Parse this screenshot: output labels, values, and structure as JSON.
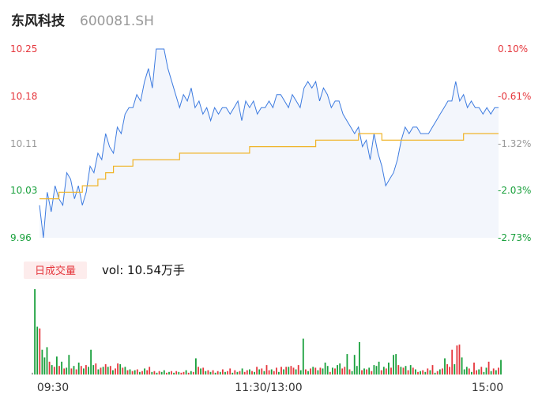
{
  "header": {
    "name": "东风科技",
    "code": "600081.SH"
  },
  "volume_panel": {
    "badge": "日成交量",
    "vol_text": "vol: 10.54万手"
  },
  "colors": {
    "price_line": "#3d7be0",
    "avg_line": "#f0b429",
    "up": "#e5363c",
    "down": "#19a03c",
    "neutral": "#999999",
    "badge_bg": "#fdecec"
  },
  "chart_data": [
    {
      "type": "line",
      "y_ticks_left": [
        "10.25",
        "10.18",
        "10.11",
        "10.03",
        "9.96"
      ],
      "y_ticks_right": [
        "0.10%",
        "-0.61%",
        "-1.32%",
        "-2.03%",
        "-2.73%"
      ],
      "ylim": [
        9.96,
        10.25
      ],
      "x_ticks": [
        "09:30",
        "11:30/13:00",
        "15:00"
      ],
      "series": [
        {
          "role": "price",
          "values": [
            10.01,
            9.96,
            10.03,
            10.0,
            10.04,
            10.02,
            10.01,
            10.06,
            10.05,
            10.02,
            10.04,
            10.01,
            10.03,
            10.07,
            10.06,
            10.09,
            10.08,
            10.12,
            10.1,
            10.09,
            10.13,
            10.12,
            10.15,
            10.16,
            10.16,
            10.18,
            10.17,
            10.2,
            10.22,
            10.19,
            10.25,
            10.25,
            10.25,
            10.22,
            10.2,
            10.18,
            10.16,
            10.18,
            10.17,
            10.19,
            10.16,
            10.17,
            10.15,
            10.16,
            10.14,
            10.16,
            10.15,
            10.16,
            10.16,
            10.15,
            10.16,
            10.17,
            10.14,
            10.17,
            10.16,
            10.17,
            10.15,
            10.16,
            10.16,
            10.17,
            10.16,
            10.18,
            10.18,
            10.17,
            10.16,
            10.18,
            10.17,
            10.16,
            10.19,
            10.2,
            10.19,
            10.2,
            10.17,
            10.19,
            10.18,
            10.16,
            10.17,
            10.17,
            10.15,
            10.14,
            10.13,
            10.12,
            10.13,
            10.1,
            10.11,
            10.08,
            10.12,
            10.09,
            10.07,
            10.04,
            10.05,
            10.06,
            10.08,
            10.11,
            10.13,
            10.12,
            10.13,
            10.13,
            10.12,
            10.12,
            10.12,
            10.13,
            10.14,
            10.15,
            10.16,
            10.17,
            10.17,
            10.2,
            10.17,
            10.18,
            10.16,
            10.17,
            10.16,
            10.16,
            10.15,
            10.16,
            10.15,
            10.16,
            10.16
          ],
          "avg_values": [
            10.02,
            10.02,
            10.02,
            10.02,
            10.02,
            10.03,
            10.03,
            10.03,
            10.03,
            10.03,
            10.03,
            10.04,
            10.04,
            10.04,
            10.04,
            10.05,
            10.05,
            10.06,
            10.06,
            10.07,
            10.07,
            10.07,
            10.07,
            10.07,
            10.08,
            10.08,
            10.08,
            10.08,
            10.08,
            10.08,
            10.08,
            10.08,
            10.08,
            10.08,
            10.08,
            10.08,
            10.09,
            10.09,
            10.09,
            10.09,
            10.09,
            10.09,
            10.09,
            10.09,
            10.09,
            10.09,
            10.09,
            10.09,
            10.09,
            10.09,
            10.09,
            10.09,
            10.09,
            10.09,
            10.1,
            10.1,
            10.1,
            10.1,
            10.1,
            10.1,
            10.1,
            10.1,
            10.1,
            10.1,
            10.1,
            10.1,
            10.1,
            10.1,
            10.1,
            10.1,
            10.1,
            10.11,
            10.11,
            10.11,
            10.11,
            10.11,
            10.11,
            10.11,
            10.11,
            10.11,
            10.11,
            10.11,
            10.12,
            10.12,
            10.12,
            10.12,
            10.12,
            10.12,
            10.11,
            10.11,
            10.11,
            10.11,
            10.11,
            10.11,
            10.11,
            10.11,
            10.11,
            10.11,
            10.11,
            10.11,
            10.11,
            10.11,
            10.11,
            10.11,
            10.11,
            10.11,
            10.11,
            10.11,
            10.11,
            10.12,
            10.12,
            10.12,
            10.12,
            10.12,
            10.12,
            10.12,
            10.12,
            10.12,
            10.12
          ]
        }
      ]
    },
    {
      "type": "bar",
      "volumes": [
        2,
        100,
        56,
        54,
        29,
        20,
        32,
        15,
        11,
        9,
        21,
        10,
        15,
        7,
        8,
        23,
        7,
        10,
        6,
        14,
        10,
        7,
        11,
        9,
        29,
        11,
        13,
        6,
        8,
        9,
        12,
        9,
        10,
        5,
        7,
        13,
        12,
        8,
        9,
        5,
        6,
        4,
        5,
        6,
        3,
        4,
        7,
        5,
        9,
        3,
        4,
        2,
        4,
        3,
        5,
        2,
        3,
        4,
        2,
        4,
        3,
        2,
        3,
        5,
        2,
        4,
        3,
        19,
        9,
        7,
        8,
        4,
        5,
        3,
        5,
        2,
        4,
        3,
        6,
        3,
        4,
        7,
        2,
        5,
        3,
        4,
        7,
        3,
        5,
        6,
        4,
        3,
        9,
        6,
        7,
        4,
        11,
        5,
        6,
        4,
        8,
        3,
        9,
        6,
        9,
        9,
        10,
        8,
        6,
        11,
        5,
        42,
        6,
        4,
        7,
        9,
        8,
        5,
        8,
        7,
        14,
        10,
        3,
        8,
        7,
        11,
        13,
        7,
        9,
        24,
        6,
        4,
        23,
        10,
        38,
        5,
        7,
        6,
        8,
        4,
        11,
        10,
        15,
        5,
        9,
        7,
        14,
        8,
        23,
        24,
        11,
        9,
        8,
        10,
        5,
        11,
        8,
        6,
        3,
        4,
        5,
        3,
        7,
        5,
        11,
        2,
        4,
        6,
        7,
        19,
        12,
        9,
        29,
        12,
        34,
        35,
        20,
        6,
        9,
        7,
        3,
        14,
        5,
        6,
        9,
        3,
        8,
        15,
        4,
        7,
        5,
        8,
        17
      ],
      "vol_colors": [
        "n",
        "d",
        "d",
        "u",
        "d",
        "d",
        "d",
        "u",
        "d",
        "u",
        "d",
        "u",
        "d",
        "u",
        "d",
        "d",
        "u",
        "d",
        "u",
        "d",
        "u",
        "d",
        "u",
        "d",
        "d",
        "d",
        "u",
        "d",
        "u",
        "d",
        "u",
        "d",
        "u",
        "d",
        "u",
        "u",
        "d",
        "u",
        "d",
        "u",
        "d",
        "u",
        "d",
        "u",
        "d",
        "u",
        "d",
        "u",
        "u",
        "d",
        "u",
        "d",
        "u",
        "d",
        "d",
        "u",
        "d",
        "u",
        "d",
        "u",
        "d",
        "u",
        "u",
        "d",
        "u",
        "d",
        "u",
        "d",
        "u",
        "d",
        "u",
        "d",
        "u",
        "d",
        "u",
        "d",
        "u",
        "d",
        "u",
        "d",
        "u",
        "u",
        "d",
        "u",
        "d",
        "u",
        "d",
        "u",
        "u",
        "d",
        "u",
        "d",
        "u",
        "d",
        "u",
        "d",
        "u",
        "u",
        "d",
        "u",
        "u",
        "d",
        "u",
        "d",
        "u",
        "d",
        "u",
        "u",
        "d",
        "u",
        "d",
        "d",
        "u",
        "d",
        "u",
        "d",
        "u",
        "d",
        "u",
        "d",
        "d",
        "d",
        "u",
        "d",
        "u",
        "d",
        "d",
        "u",
        "u",
        "d",
        "u",
        "d",
        "d",
        "d",
        "d",
        "u",
        "d",
        "u",
        "d",
        "u",
        "d",
        "d",
        "d",
        "u",
        "d",
        "u",
        "d",
        "u",
        "d",
        "d",
        "u",
        "d",
        "u",
        "d",
        "u",
        "d",
        "u",
        "d",
        "u",
        "d",
        "u",
        "d",
        "u",
        "d",
        "u",
        "d",
        "u",
        "d",
        "u",
        "d",
        "u",
        "u",
        "u",
        "d",
        "u",
        "u",
        "d",
        "d",
        "d",
        "u",
        "d",
        "u",
        "u",
        "d",
        "u",
        "d",
        "d",
        "u",
        "d",
        "u",
        "d",
        "u",
        "d",
        "d"
      ]
    }
  ]
}
